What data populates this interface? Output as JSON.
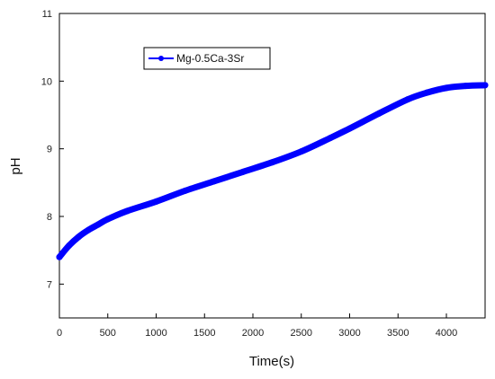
{
  "chart_data": {
    "type": "line",
    "title": "",
    "xlabel": "Time(s)",
    "ylabel": "pH",
    "xlim": [
      0,
      4400
    ],
    "ylim": [
      6.5,
      11
    ],
    "x_ticks": [
      0,
      500,
      1000,
      1500,
      2000,
      2500,
      3000,
      3500,
      4000
    ],
    "y_ticks": [
      7,
      8,
      9,
      10,
      11
    ],
    "x_tick_labels": [
      "0",
      "500",
      "1000",
      "1500",
      "2000",
      "2500",
      "3000",
      "3500",
      "4000"
    ],
    "y_tick_labels": [
      "7",
      "8",
      "9",
      "10",
      "11"
    ],
    "grid": false,
    "legend_position": "top-left",
    "series": [
      {
        "name": "Mg-0.5Ca-3Sr",
        "color": "#0000ff",
        "marker": "circle",
        "x": [
          0,
          100,
          200,
          300,
          400,
          500,
          700,
          1000,
          1300,
          1600,
          1900,
          2200,
          2500,
          2800,
          3000,
          3300,
          3600,
          3800,
          4000,
          4200,
          4400
        ],
        "y": [
          7.4,
          7.57,
          7.7,
          7.8,
          7.88,
          7.96,
          8.08,
          8.22,
          8.38,
          8.52,
          8.66,
          8.8,
          8.96,
          9.16,
          9.3,
          9.52,
          9.73,
          9.83,
          9.9,
          9.93,
          9.94
        ]
      }
    ]
  }
}
